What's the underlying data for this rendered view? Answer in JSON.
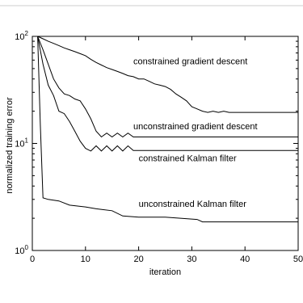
{
  "chart_data": {
    "type": "line",
    "title": "",
    "xlabel": "iteration",
    "ylabel": "normalized training error",
    "xlim": [
      0,
      50
    ],
    "ylim": [
      1,
      100
    ],
    "yscale": "log",
    "grid": false,
    "legend": "none",
    "x_ticks": [
      {
        "value": 0,
        "label": "0"
      },
      {
        "value": 10,
        "label": "10"
      },
      {
        "value": 20,
        "label": "20"
      },
      {
        "value": 30,
        "label": "30"
      },
      {
        "value": 40,
        "label": "40"
      },
      {
        "value": 50,
        "label": "50"
      }
    ],
    "y_ticks": [
      {
        "value": 1,
        "base": "10",
        "exp": "0"
      },
      {
        "value": 10,
        "base": "10",
        "exp": "1"
      },
      {
        "value": 100,
        "base": "10",
        "exp": "2"
      }
    ],
    "series": [
      {
        "name": "constrained gradient descent",
        "points": [
          [
            1,
            100
          ],
          [
            2,
            95
          ],
          [
            3,
            90
          ],
          [
            4,
            86
          ],
          [
            5,
            82
          ],
          [
            6,
            78
          ],
          [
            7,
            75
          ],
          [
            8,
            72
          ],
          [
            9,
            69
          ],
          [
            10,
            66
          ],
          [
            11,
            61
          ],
          [
            12,
            57
          ],
          [
            13,
            54
          ],
          [
            14,
            51
          ],
          [
            15,
            49
          ],
          [
            16,
            47
          ],
          [
            17,
            45
          ],
          [
            18,
            43
          ],
          [
            19,
            42
          ],
          [
            20,
            40
          ],
          [
            21,
            40
          ],
          [
            22,
            38
          ],
          [
            23,
            36
          ],
          [
            24,
            35
          ],
          [
            25,
            34
          ],
          [
            26,
            32
          ],
          [
            27,
            29
          ],
          [
            28,
            27
          ],
          [
            29,
            25
          ],
          [
            30,
            22
          ],
          [
            31,
            21
          ],
          [
            32,
            20
          ],
          [
            33,
            19.5
          ],
          [
            34,
            20
          ],
          [
            35,
            19.5
          ],
          [
            36,
            20
          ],
          [
            37,
            19.5
          ],
          [
            50,
            19.5
          ]
        ]
      },
      {
        "name": "unconstrained gradient descent",
        "points": [
          [
            1,
            100
          ],
          [
            2,
            75
          ],
          [
            3,
            55
          ],
          [
            4,
            40
          ],
          [
            5,
            33
          ],
          [
            6,
            29
          ],
          [
            7,
            28
          ],
          [
            8,
            26
          ],
          [
            9,
            25
          ],
          [
            10,
            21
          ],
          [
            11,
            17
          ],
          [
            12,
            13
          ],
          [
            13,
            11.5
          ],
          [
            14,
            12.5
          ],
          [
            15,
            11.5
          ],
          [
            16,
            12.5
          ],
          [
            17,
            11.5
          ],
          [
            18,
            12.5
          ],
          [
            19,
            11.5
          ],
          [
            50,
            11.5
          ]
        ]
      },
      {
        "name": "constrained Kalman filter",
        "points": [
          [
            1,
            100
          ],
          [
            2,
            55
          ],
          [
            3,
            35
          ],
          [
            4,
            28
          ],
          [
            5,
            20
          ],
          [
            6,
            19
          ],
          [
            7,
            16
          ],
          [
            8,
            13
          ],
          [
            9,
            10.5
          ],
          [
            10,
            9
          ],
          [
            11,
            8.5
          ],
          [
            12,
            9.5
          ],
          [
            13,
            8.5
          ],
          [
            14,
            9.5
          ],
          [
            15,
            8.5
          ],
          [
            16,
            9.5
          ],
          [
            17,
            8.5
          ],
          [
            18,
            9.5
          ],
          [
            19,
            8.6
          ],
          [
            50,
            8.6
          ]
        ]
      },
      {
        "name": "unconstrained Kalman filter",
        "points": [
          [
            1,
            100
          ],
          [
            1.5,
            15
          ],
          [
            2,
            3.1
          ],
          [
            3,
            3
          ],
          [
            5,
            2.9
          ],
          [
            7,
            2.65
          ],
          [
            10,
            2.55
          ],
          [
            12,
            2.45
          ],
          [
            15,
            2.35
          ],
          [
            17,
            2.1
          ],
          [
            20,
            2.05
          ],
          [
            25,
            2.05
          ],
          [
            31,
            1.95
          ],
          [
            32,
            1.85
          ],
          [
            50,
            1.85
          ]
        ]
      }
    ],
    "annotations": [
      {
        "text": "constrained gradient descent",
        "x": 19,
        "y": 55
      },
      {
        "text": "unconstrained gradient descent",
        "x": 19,
        "y": 13.5
      },
      {
        "text": "constrained Kalman filter",
        "x": 20,
        "y": 6.8
      },
      {
        "text": "unconstrained Kalman filter",
        "x": 20,
        "y": 2.55
      }
    ]
  }
}
